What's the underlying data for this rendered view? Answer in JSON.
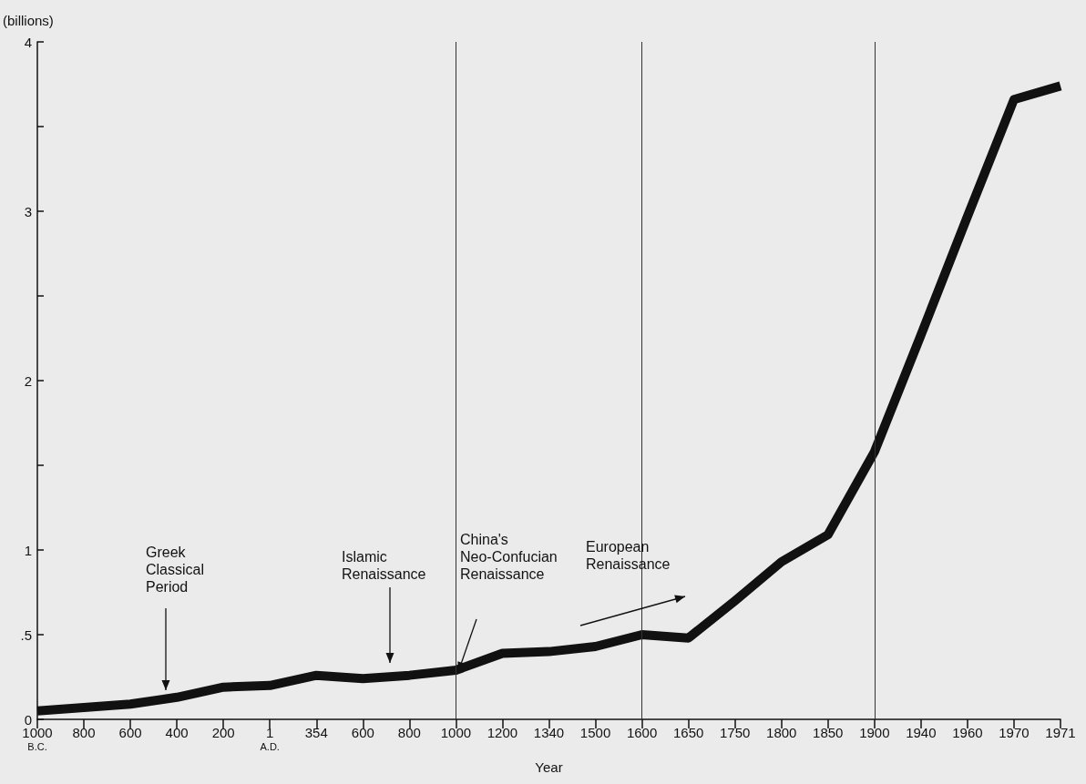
{
  "chart_data": {
    "type": "line",
    "xlabel": "Year",
    "ylabel": "(billions)",
    "categories": [
      "1000\nB.C.",
      "800",
      "600",
      "400",
      "200",
      "1\nA.D.",
      "354",
      "600",
      "800",
      "1000",
      "1200",
      "1340",
      "1500",
      "1600",
      "1650",
      "1750",
      "1800",
      "1850",
      "1900",
      "1940",
      "1960",
      "1970",
      "1971"
    ],
    "series": [
      {
        "color": "#111111",
        "values": [
          0.05,
          0.07,
          0.09,
          0.13,
          0.19,
          0.2,
          0.26,
          0.24,
          0.26,
          0.29,
          0.39,
          0.4,
          0.43,
          0.5,
          0.48,
          0.7,
          0.93,
          1.09,
          1.58,
          2.27,
          2.97,
          3.66,
          3.74
        ]
      }
    ],
    "ylim": [
      0,
      4
    ],
    "yticks": [
      0,
      {
        "value": 0.5,
        "label": ".5"
      },
      1,
      {
        "value": 1.5,
        "label": null
      },
      2,
      {
        "value": 2.5,
        "label": null
      },
      3,
      {
        "value": 3.5,
        "label": null
      },
      4
    ],
    "ref_lines": [
      {
        "axis": "x",
        "value": "1000",
        "color": "#333333"
      },
      {
        "axis": "x",
        "value": "1600",
        "color": "#333333"
      },
      {
        "axis": "x",
        "value": "1900",
        "color": "#333333"
      }
    ],
    "annotations": [
      "Greek\nClassical\nPeriod",
      "Islamic\nRenaissance",
      "China's\nNeo-Confucian\nRenaissance",
      "European\nRenaissance"
    ],
    "grid": false,
    "marker": "none",
    "line_style": "solid"
  }
}
